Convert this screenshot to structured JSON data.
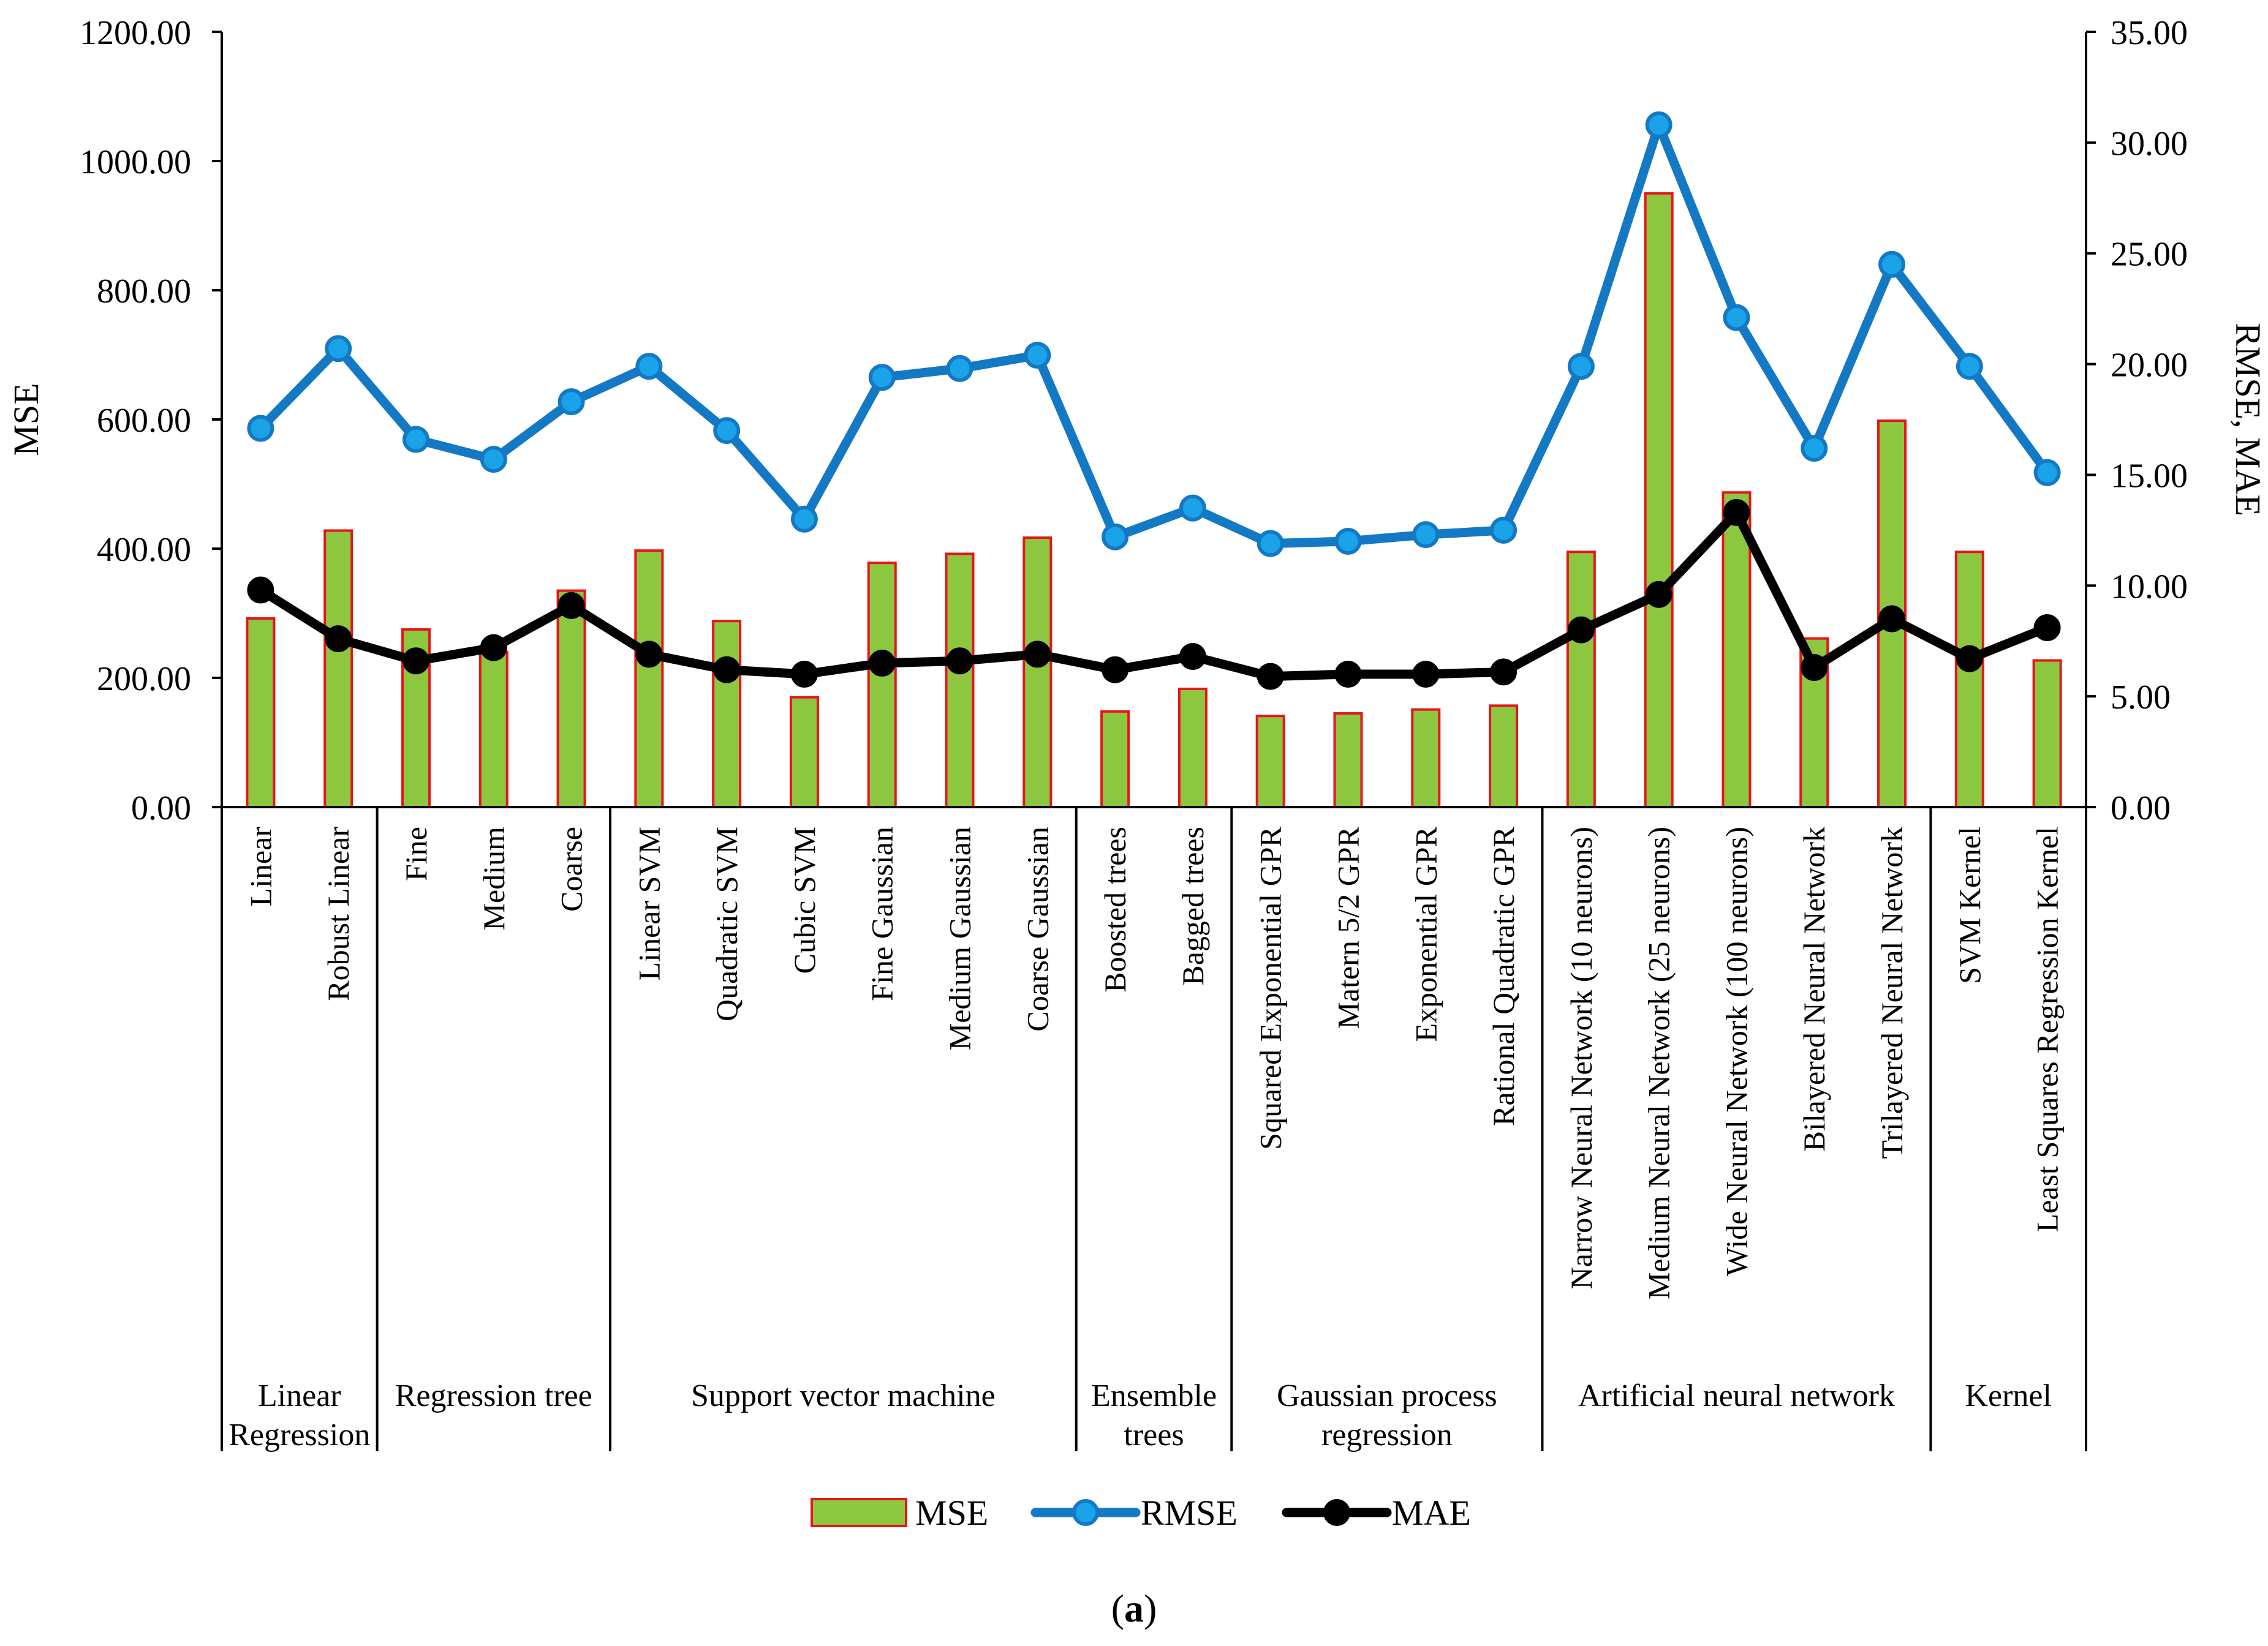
{
  "chart_data": {
    "type": "bar+line",
    "ylabel_left": "MSE",
    "ylabel_right": "RMSE, MAE",
    "ylim_left": [
      0,
      1200
    ],
    "ylim_right": [
      0,
      35
    ],
    "left_ticks": [
      "0.00",
      "200.00",
      "400.00",
      "600.00",
      "800.00",
      "1000.00",
      "1200.00"
    ],
    "right_ticks": [
      "0.00",
      "5.00",
      "10.00",
      "15.00",
      "20.00",
      "25.00",
      "30.00",
      "35.00"
    ],
    "categories": [
      "Linear",
      "Robust Linear",
      "Fine",
      "Medium",
      "Coarse",
      "Linear SVM",
      "Quadratic SVM",
      "Cubic SVM",
      "Fine Gaussian",
      "Medium Gaussian",
      "Coarse Gaussian",
      "Boosted trees",
      "Bagged trees",
      "Squared Exponential GPR",
      "Matern 5/2 GPR",
      "Exponential GPR",
      "Rational Quadratic GPR",
      "Narrow Neural Network (10 neurons)",
      "Medium Neural Network (25 neurons)",
      "Wide Neural Network (100 neurons)",
      "Bilayered Neural Network",
      "Trilayered Neural Network",
      "SVM Kernel",
      "Least Squares Regression Kernel"
    ],
    "groups": [
      {
        "lines": [
          "Linear",
          "Regression"
        ],
        "start": 0,
        "end": 1
      },
      {
        "lines": [
          "Regression tree"
        ],
        "start": 2,
        "end": 4
      },
      {
        "lines": [
          "Support vector machine"
        ],
        "start": 5,
        "end": 10
      },
      {
        "lines": [
          "Ensemble",
          "trees"
        ],
        "start": 11,
        "end": 12
      },
      {
        "lines": [
          "Gaussian process",
          "regression"
        ],
        "start": 13,
        "end": 16
      },
      {
        "lines": [
          "Artificial neural network"
        ],
        "start": 17,
        "end": 21
      },
      {
        "lines": [
          "Kernel"
        ],
        "start": 22,
        "end": 23
      }
    ],
    "series": [
      {
        "name": "MSE",
        "axis": "left",
        "kind": "bar",
        "values": [
          292,
          428,
          275,
          240,
          335,
          397,
          288,
          170,
          378,
          392,
          417,
          148,
          183,
          141,
          145,
          151,
          157,
          395,
          950,
          487,
          261,
          598,
          395,
          227
        ]
      },
      {
        "name": "RMSE",
        "axis": "right",
        "kind": "line",
        "values": [
          17.1,
          20.7,
          16.6,
          15.7,
          18.3,
          19.9,
          17.0,
          13.0,
          19.4,
          19.8,
          20.4,
          12.2,
          13.5,
          11.9,
          12.0,
          12.3,
          12.5,
          19.9,
          30.8,
          22.1,
          16.2,
          24.5,
          19.9,
          15.1
        ]
      },
      {
        "name": "MAE",
        "axis": "right",
        "kind": "line",
        "values": [
          9.8,
          7.6,
          6.6,
          7.2,
          9.1,
          6.9,
          6.2,
          6.0,
          6.5,
          6.6,
          6.9,
          6.2,
          6.8,
          5.9,
          6.0,
          6.0,
          6.1,
          8.0,
          9.6,
          13.3,
          6.3,
          8.5,
          6.7,
          8.1
        ]
      }
    ],
    "legend": [
      "MSE",
      "RMSE",
      "MAE"
    ],
    "colors": {
      "bar_fill": "#8DC63F",
      "bar_edge": "#E8141B",
      "rmse": "#1479C4",
      "rmse_marker": "#1AA3E8",
      "mae": "#000000"
    },
    "caption": {
      "open": "(",
      "letter": "a",
      "close": ")"
    }
  }
}
